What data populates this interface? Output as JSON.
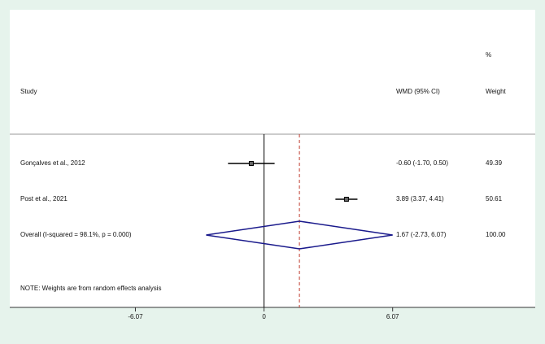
{
  "chart_data": {
    "type": "forest",
    "columns": {
      "study": "Study",
      "effect": "WMD (95% CI)",
      "weight_unit": "%",
      "weight": "Weight"
    },
    "studies": [
      {
        "name": "Gonçalves et al., 2012",
        "effect": -0.6,
        "ci": [
          -1.7,
          0.5
        ],
        "effect_label": "-0.60 (-1.70, 0.50)",
        "weight": "49.39"
      },
      {
        "name": "Post et al., 2021",
        "effect": 3.89,
        "ci": [
          3.37,
          4.41
        ],
        "effect_label": "3.89 (3.37, 4.41)",
        "weight": "50.61"
      }
    ],
    "overall": {
      "name": "Overall  (I-squared = 98.1%, p = 0.000)",
      "effect": 1.67,
      "ci": [
        -2.73,
        6.07
      ],
      "effect_label": "1.67 (-2.73, 6.07)",
      "weight": "100.00"
    },
    "note": "NOTE: Weights are from random effects analysis",
    "xlim": [
      -12,
      12.8
    ],
    "xticks": [
      -6.07,
      0,
      6.07
    ],
    "colors": {
      "marker": "#000000",
      "diamond": "#1a1a8c",
      "overall_line": "#c0392b"
    }
  }
}
